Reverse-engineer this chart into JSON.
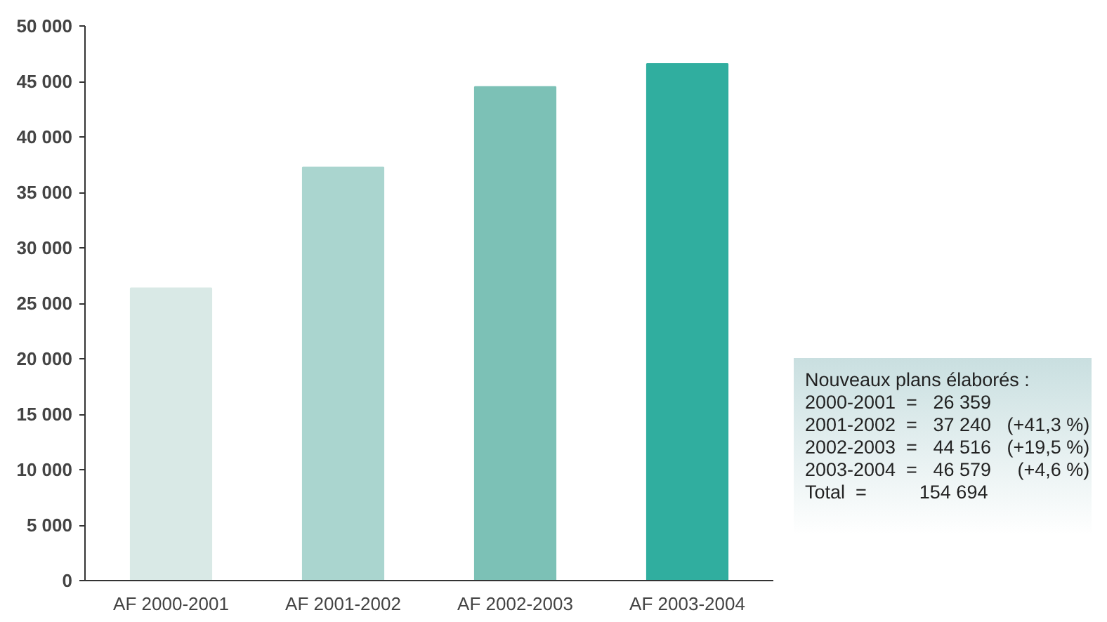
{
  "chart_data": {
    "type": "bar",
    "categories": [
      "AF 2000-2001",
      "AF 2001-2002",
      "AF 2002-2003",
      "AF 2003-2004"
    ],
    "values": [
      26359,
      37240,
      44516,
      46579
    ],
    "colors": [
      "#d9e9e6",
      "#aad5cf",
      "#7cc1b6",
      "#30ae9f"
    ],
    "ylim": [
      0,
      50000
    ],
    "yticks": [
      0,
      {
        "value": 5000,
        "label": "5 000"
      },
      {
        "value": 10000,
        "label": "10 000"
      },
      {
        "value": 15000,
        "label": "15 000"
      },
      {
        "value": 20000,
        "label": "20 000"
      },
      {
        "value": 25000,
        "label": "25 000"
      },
      {
        "value": 30000,
        "label": "30 000"
      },
      {
        "value": 35000,
        "label": "35 000"
      },
      {
        "value": 40000,
        "label": "40 000"
      },
      {
        "value": 45000,
        "label": "45 000"
      },
      {
        "value": 50000,
        "label": "50 000"
      }
    ],
    "grid": false,
    "annotations": [
      "Nouveaux plans élaborés :",
      "2000-2001  =   26 359",
      "2001-2002  =   37 240   (+41,3 %)",
      "2002-2003  =   44 516   (+19,5 %)",
      "2003-2004  =   46 579     (+4,6 %)",
      "Total  =          154 694"
    ]
  }
}
